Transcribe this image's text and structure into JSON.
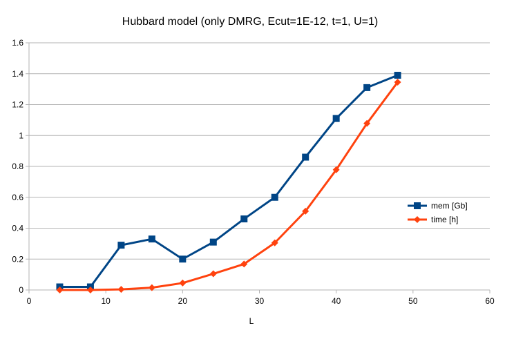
{
  "chart_data": {
    "type": "line",
    "title": "Hubbard model (only DMRG, Ecut=1E-12, t=1, U=1)",
    "xlabel": "L",
    "ylabel": "",
    "xlim": [
      0,
      60
    ],
    "ylim": [
      0,
      1.6
    ],
    "x_ticks": [
      0,
      10,
      20,
      30,
      40,
      50,
      60
    ],
    "y_ticks": [
      0,
      0.2,
      0.4,
      0.6,
      0.8,
      1,
      1.2,
      1.4,
      1.6
    ],
    "x_tick_labels": [
      "0",
      "10",
      "20",
      "30",
      "40",
      "50",
      "60"
    ],
    "y_tick_labels": [
      "0",
      "0.2",
      "0.4",
      "0.6",
      "0.8",
      "1",
      "1.2",
      "1.4",
      "1.6"
    ],
    "grid": "horizontal",
    "legend_position": "right",
    "series": [
      {
        "name": "mem [Gb]",
        "color": "#004586",
        "marker": "square",
        "x": [
          4,
          8,
          12,
          16,
          20,
          24,
          28,
          32,
          36,
          40,
          44,
          48
        ],
        "y": [
          0.02,
          0.02,
          0.29,
          0.33,
          0.2,
          0.31,
          0.46,
          0.6,
          0.86,
          1.11,
          1.31,
          1.39
        ]
      },
      {
        "name": "time [h]",
        "color": "#ff420e",
        "marker": "diamond",
        "x": [
          4,
          8,
          12,
          16,
          20,
          24,
          28,
          32,
          36,
          40,
          44,
          48
        ],
        "y": [
          0.0,
          0.0,
          0.004,
          0.015,
          0.045,
          0.105,
          0.168,
          0.305,
          0.51,
          0.778,
          1.078,
          1.345
        ]
      }
    ]
  }
}
